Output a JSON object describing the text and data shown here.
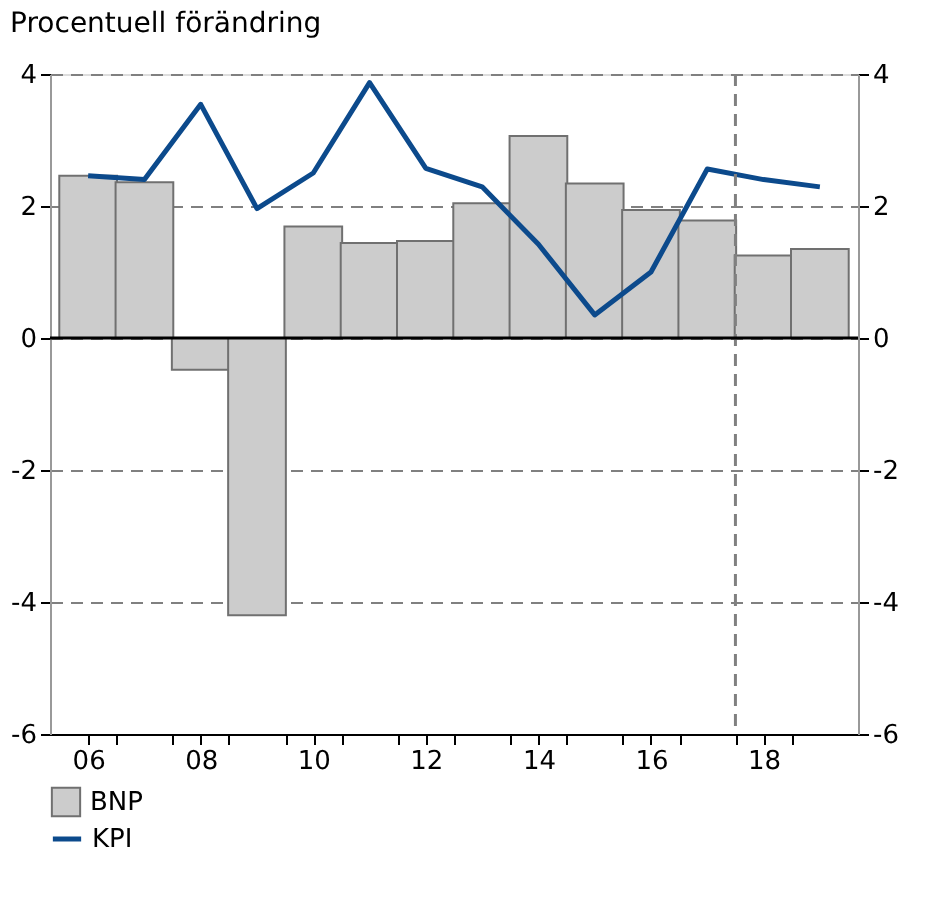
{
  "chart_data": {
    "type": "bar",
    "title": "Procentuell förändring",
    "x": [
      2006,
      2007,
      2008,
      2009,
      2010,
      2011,
      2012,
      2013,
      2014,
      2015,
      2016,
      2017,
      2018,
      2019
    ],
    "series": [
      {
        "name": "BNP",
        "color": "#cccccc",
        "values": [
          2.46,
          2.36,
          -0.48,
          -4.2,
          1.69,
          1.44,
          1.47,
          2.04,
          3.06,
          2.34,
          1.94,
          1.78,
          1.25,
          1.35
        ]
      },
      {
        "name": "KPI",
        "type": "line",
        "color": "#0c4a8c",
        "values": [
          2.46,
          2.4,
          3.54,
          1.96,
          2.5,
          3.87,
          2.57,
          2.29,
          1.42,
          0.35,
          1.0,
          2.56,
          2.4,
          2.29
        ]
      }
    ],
    "xlim": [
      2005.5,
      2019.5
    ],
    "xticks": [
      {
        "value": 2006,
        "label": "06"
      },
      {
        "value": 2008,
        "label": "08"
      },
      {
        "value": 2010,
        "label": "10"
      },
      {
        "value": 2012,
        "label": "12"
      },
      {
        "value": 2014,
        "label": "14"
      },
      {
        "value": 2016,
        "label": "16"
      },
      {
        "value": 2018,
        "label": "18"
      },
      {
        "value": 2006.5,
        "label": null
      },
      {
        "value": 2007.5,
        "label": null
      },
      {
        "value": 2008.5,
        "label": null
      },
      {
        "value": 2009.5,
        "label": null
      },
      {
        "value": 2010.5,
        "label": null
      },
      {
        "value": 2011.5,
        "label": null
      },
      {
        "value": 2012.5,
        "label": null
      },
      {
        "value": 2013.5,
        "label": null
      },
      {
        "value": 2014.5,
        "label": null
      },
      {
        "value": 2015.5,
        "label": null
      },
      {
        "value": 2016.5,
        "label": null
      },
      {
        "value": 2017.5,
        "label": null
      },
      {
        "value": 2018.5,
        "label": null
      }
    ],
    "ylim": [
      -6,
      4
    ],
    "yticks": [
      -6,
      -4,
      -2,
      0,
      2,
      4
    ],
    "y2lim": [
      -6,
      4
    ],
    "y2ticks": [
      -6,
      -4,
      -2,
      0,
      2,
      4
    ],
    "ref_lines": [
      {
        "axis": "x",
        "value": 2017.5,
        "color": "#808080",
        "line_style": "dashed"
      },
      {
        "axis": "y",
        "value": 0,
        "color": "#000000",
        "line_style": "solid"
      }
    ],
    "grid": "y",
    "legend": "bottom left",
    "line_style": "solid",
    "marker": "none"
  }
}
